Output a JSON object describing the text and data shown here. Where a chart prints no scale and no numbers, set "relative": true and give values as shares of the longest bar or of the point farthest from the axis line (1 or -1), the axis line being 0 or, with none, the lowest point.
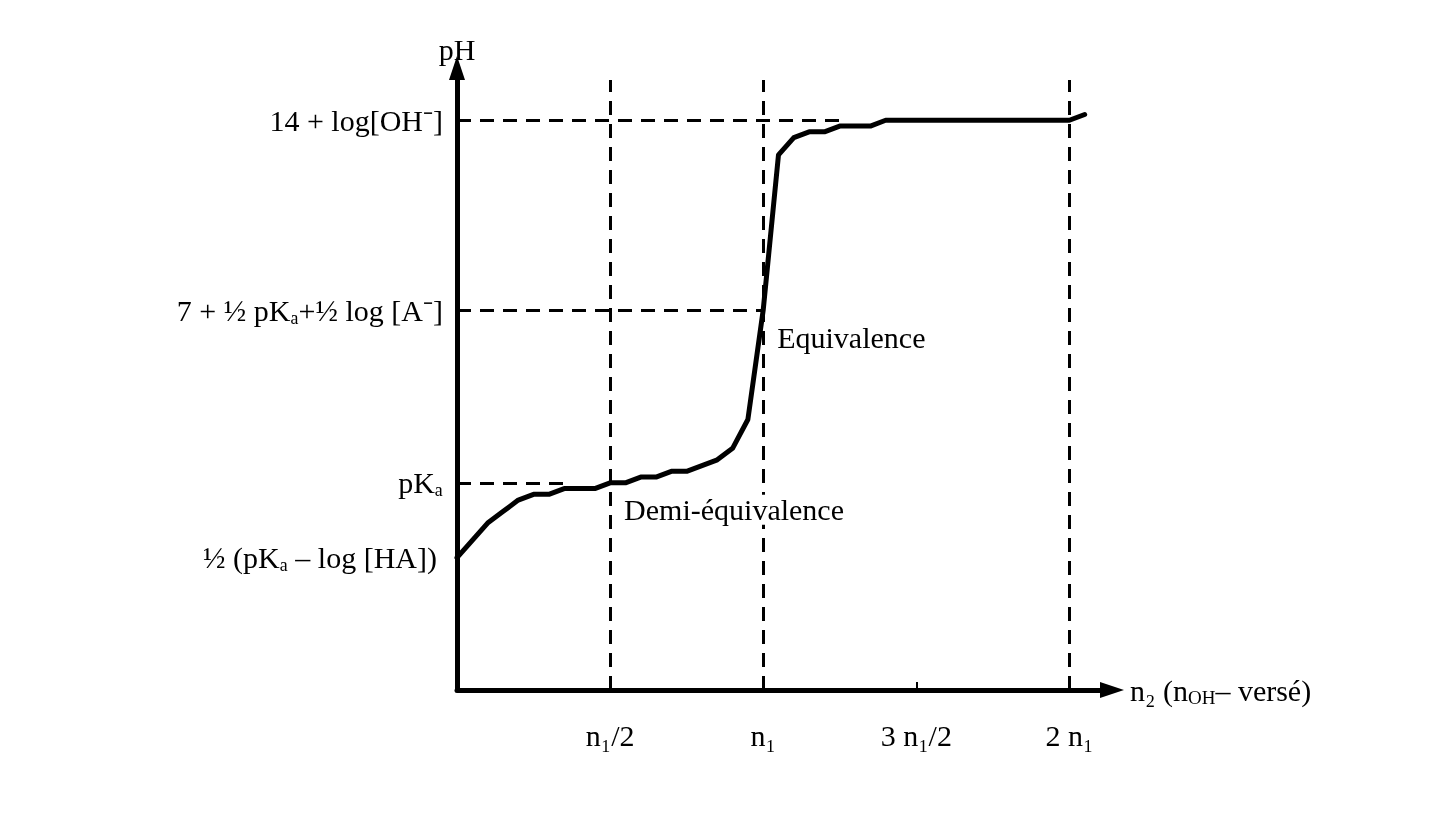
{
  "chart_data": {
    "type": "line",
    "relative": true,
    "ylabel": "pH",
    "xlabel": "n₂ (n$_{OH}$– versé)",
    "categories": [
      null,
      null,
      null,
      null,
      null,
      null,
      null,
      null,
      null,
      null,
      "n₁/2",
      null,
      null,
      null,
      null,
      null,
      null,
      null,
      null,
      null,
      "n₁",
      null,
      null,
      null,
      null,
      null,
      null,
      null,
      null,
      null,
      "3 n₁/2",
      null,
      null,
      null,
      null,
      null,
      null,
      null,
      null,
      null,
      "2 n₁",
      null,
      null
    ],
    "series": [
      {
        "color": "#000000",
        "values": [
          0.23,
          0.26,
          0.29,
          0.31,
          0.33,
          0.34,
          0.34,
          0.35,
          0.35,
          0.35,
          0.36,
          0.36,
          0.37,
          0.37,
          0.38,
          0.38,
          0.39,
          0.4,
          0.42,
          0.47,
          0.66,
          0.93,
          0.96,
          0.97,
          0.97,
          0.98,
          0.98,
          0.98,
          0.99,
          0.99,
          0.99,
          0.99,
          0.99,
          0.99,
          0.99,
          0.99,
          0.99,
          0.99,
          0.99,
          0.99,
          0.99,
          1.0,
          null
        ]
      }
    ],
    "ref_lines": [
      {
        "axis": "y",
        "value": 0.99,
        "label": "14 + log[OH⁻]",
        "line_style": "dashed"
      },
      {
        "axis": "y",
        "value": 0.66,
        "label": "7 + ½ pKₐ+½ log [A⁻]",
        "line_style": "dashed"
      },
      {
        "axis": "y",
        "value": 0.36,
        "label": "pKₐ",
        "line_style": "dashed"
      },
      {
        "axis": "x",
        "value": "n₁/2",
        "line_style": "dashed"
      },
      {
        "axis": "x",
        "value": "n₁",
        "line_style": "dashed"
      },
      {
        "axis": "x",
        "value": "2 n₁",
        "line_style": "dashed"
      }
    ],
    "annotations": [
      "½ (pKₐ – log [HA])",
      {
        "text": "Equivalence",
        "x": "n₁",
        "y": 0.66
      },
      {
        "text": "Demi-équivalence",
        "x": "n₁/2",
        "y": 0.36
      }
    ],
    "grid": false,
    "marker": "none",
    "line_style": "solid"
  }
}
